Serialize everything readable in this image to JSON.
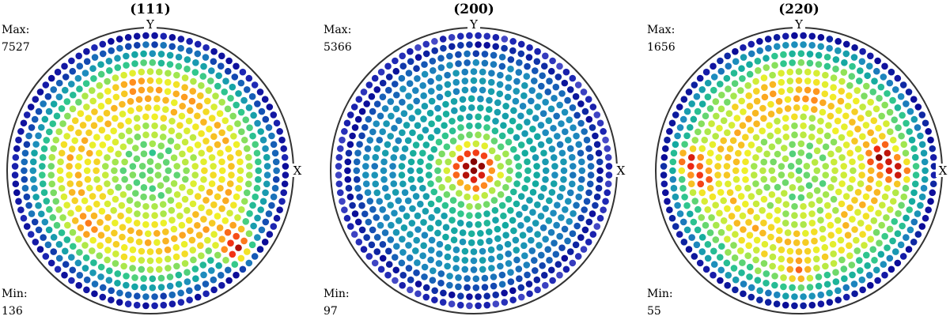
{
  "chart_data": [
    {
      "type": "scatter",
      "subtype": "pole-figure",
      "title": "(111)",
      "axis_labels": {
        "x": "X",
        "y": "Y"
      },
      "stats": {
        "max_label": "Max:",
        "max_value": "7527",
        "min_label": "Min:",
        "min_value": "136"
      },
      "value_range": [
        136,
        7527
      ],
      "colormap": [
        "#f2f2fb",
        "#b8bbee",
        "#6464d4",
        "#1e28b4",
        "#0a0a96",
        "#1450b4",
        "#1e8cbe",
        "#14aaa0",
        "#32c88c",
        "#a0e650",
        "#f0f028",
        "#ff8c1e",
        "#f02814",
        "#800000"
      ],
      "radial_profile": [
        {
          "r": 0.0,
          "v": 2000
        },
        {
          "r": 0.15,
          "v": 1800
        },
        {
          "r": 0.3,
          "v": 2400
        },
        {
          "r": 0.45,
          "v": 3200
        },
        {
          "r": 0.6,
          "v": 3400
        },
        {
          "r": 0.72,
          "v": 2000
        },
        {
          "r": 0.85,
          "v": 900
        },
        {
          "r": 1.0,
          "v": 250
        }
      ],
      "hotspots": [
        {
          "r": 0.62,
          "azimuth_deg": 100,
          "v": 4200
        },
        {
          "r": 0.6,
          "azimuth_deg": 60,
          "v": 3900
        },
        {
          "r": 0.82,
          "azimuth_deg": 318,
          "v": 7527
        },
        {
          "r": 0.75,
          "azimuth_deg": 322,
          "v": 5000
        },
        {
          "r": 0.58,
          "azimuth_deg": 222,
          "v": 4300
        }
      ]
    },
    {
      "type": "scatter",
      "subtype": "pole-figure",
      "title": "(200)",
      "axis_labels": {
        "x": "X",
        "y": "Y"
      },
      "stats": {
        "max_label": "Max:",
        "max_value": "5366",
        "min_label": "Min:",
        "min_value": "97"
      },
      "value_range": [
        97,
        5366
      ],
      "colormap": [
        "#f2f2fb",
        "#b8bbee",
        "#6464d4",
        "#1e28b4",
        "#0a0a96",
        "#1450b4",
        "#1e8cbe",
        "#14aaa0",
        "#32c88c",
        "#a0e650",
        "#f0f028",
        "#ff8c1e",
        "#f02814",
        "#800000"
      ],
      "radial_profile": [
        {
          "r": 0.0,
          "v": 5200
        },
        {
          "r": 0.1,
          "v": 3400
        },
        {
          "r": 0.2,
          "v": 1700
        },
        {
          "r": 0.35,
          "v": 900
        },
        {
          "r": 0.55,
          "v": 700
        },
        {
          "r": 0.75,
          "v": 600
        },
        {
          "r": 0.88,
          "v": 400
        },
        {
          "r": 1.0,
          "v": 180
        }
      ],
      "hotspots": [
        {
          "r": 0.05,
          "azimuth_deg": 90,
          "v": 5366
        }
      ]
    },
    {
      "type": "scatter",
      "subtype": "pole-figure",
      "title": "(220)",
      "axis_labels": {
        "x": "X",
        "y": "Y"
      },
      "stats": {
        "max_label": "Max:",
        "max_value": "1656",
        "min_label": "Min:",
        "min_value": "55"
      },
      "value_range": [
        55,
        1656
      ],
      "colormap": [
        "#f2f2fb",
        "#b8bbee",
        "#6464d4",
        "#1e28b4",
        "#0a0a96",
        "#1450b4",
        "#1e8cbe",
        "#14aaa0",
        "#32c88c",
        "#a0e650",
        "#f0f028",
        "#ff8c1e",
        "#f02814",
        "#800000"
      ],
      "radial_profile": [
        {
          "r": 0.0,
          "v": 550
        },
        {
          "r": 0.2,
          "v": 560
        },
        {
          "r": 0.35,
          "v": 650
        },
        {
          "r": 0.5,
          "v": 820
        },
        {
          "r": 0.65,
          "v": 720
        },
        {
          "r": 0.8,
          "v": 450
        },
        {
          "r": 0.9,
          "v": 280
        },
        {
          "r": 1.0,
          "v": 90
        }
      ],
      "hotspots": [
        {
          "r": 0.7,
          "azimuth_deg": 0,
          "v": 1500
        },
        {
          "r": 0.6,
          "azimuth_deg": 10,
          "v": 1656
        },
        {
          "r": 0.78,
          "azimuth_deg": 175,
          "v": 1450
        },
        {
          "r": 0.7,
          "azimuth_deg": 185,
          "v": 1300
        },
        {
          "r": 0.72,
          "azimuth_deg": 270,
          "v": 1100
        },
        {
          "r": 0.55,
          "azimuth_deg": 80,
          "v": 1000
        },
        {
          "r": 0.6,
          "azimuth_deg": 110,
          "v": 950
        }
      ]
    }
  ]
}
